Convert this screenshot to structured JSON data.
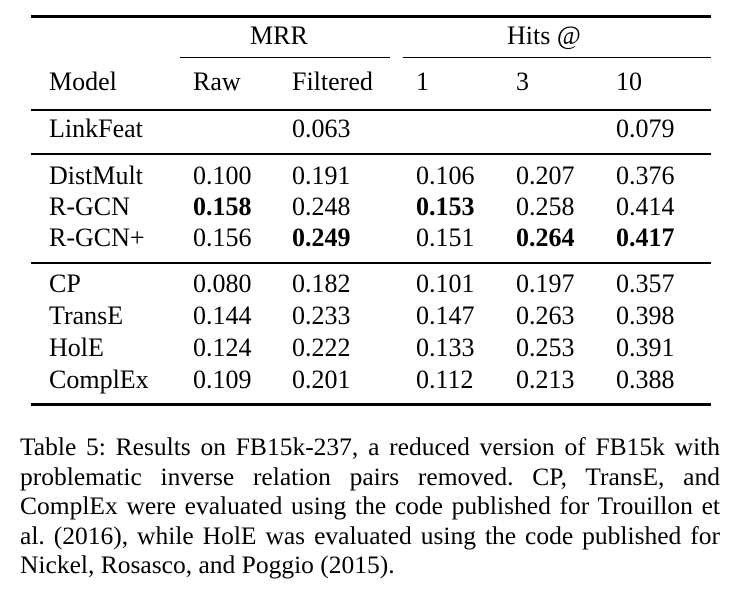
{
  "table": {
    "group_headers": {
      "mrr": "MRR",
      "hits": "Hits @"
    },
    "column_headers": [
      "Model",
      "Raw",
      "Filtered",
      "1",
      "3",
      "10"
    ],
    "rows": [
      {
        "model": "LinkFeat",
        "raw": "",
        "filtered": "0.063",
        "h1": "",
        "h3": "",
        "h10": "0.079"
      },
      {
        "model": "DistMult",
        "raw": "0.100",
        "filtered": "0.191",
        "h1": "0.106",
        "h3": "0.207",
        "h10": "0.376"
      },
      {
        "model": "R-GCN",
        "raw": "0.158",
        "filtered": "0.248",
        "h1": "0.153",
        "h3": "0.258",
        "h10": "0.414"
      },
      {
        "model": "R-GCN+",
        "raw": "0.156",
        "filtered": "0.249",
        "h1": "0.151",
        "h3": "0.264",
        "h10": "0.417"
      },
      {
        "model": "CP",
        "raw": "0.080",
        "filtered": "0.182",
        "h1": "0.101",
        "h3": "0.197",
        "h10": "0.357"
      },
      {
        "model": "TransE",
        "raw": "0.144",
        "filtered": "0.233",
        "h1": "0.147",
        "h3": "0.263",
        "h10": "0.398"
      },
      {
        "model": "HolE",
        "raw": "0.124",
        "filtered": "0.222",
        "h1": "0.133",
        "h3": "0.253",
        "h10": "0.391"
      },
      {
        "model": "ComplEx",
        "raw": "0.109",
        "filtered": "0.201",
        "h1": "0.112",
        "h3": "0.213",
        "h10": "0.388"
      }
    ]
  },
  "caption": "Table 5: Results on FB15k-237, a reduced version of FB15k with problematic inverse relation pairs removed. CP, TransE, and ComplEx were evaluated using the code published for Trouillon et al. (2016), while HolE was evaluated using the code published for Nickel, Rosasco, and Poggio (2015)."
}
